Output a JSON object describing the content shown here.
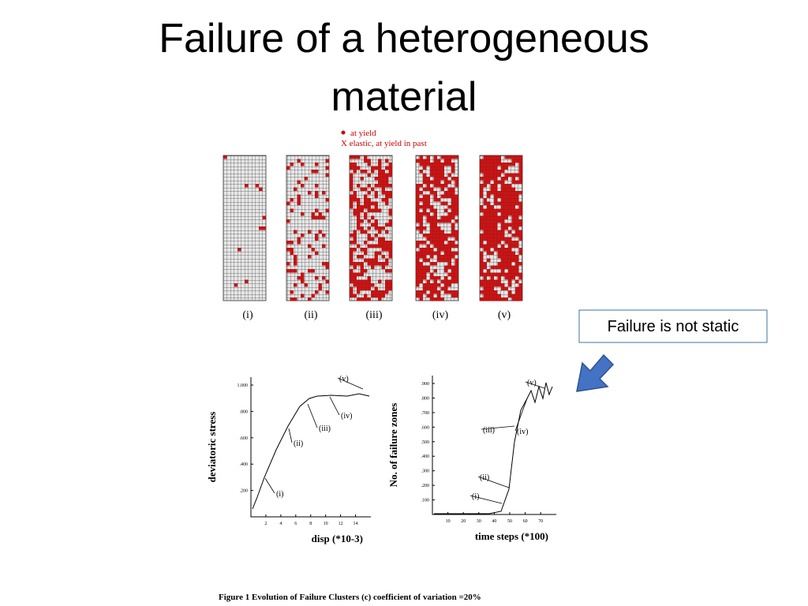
{
  "title": "Failure of a heterogeneous material",
  "legend": {
    "items": [
      "at yield",
      "X elastic, at yield in past"
    ]
  },
  "panels": {
    "labels": [
      "(i)",
      "(ii)",
      "(iii)",
      "(iv)",
      "(v)"
    ]
  },
  "stress_plot": {
    "y_label": "deviatoric stress",
    "x_label": "disp (*10-3)",
    "y_ticks": [
      ".200",
      ".400",
      ".600",
      ".800",
      "1.000"
    ],
    "x_ticks": [
      "2",
      "4",
      "6",
      "8",
      "10",
      "12",
      "14"
    ]
  },
  "zones_plot": {
    "y_label": "No. of failure zones",
    "x_label": "time steps (*100)",
    "y_ticks": [
      ".100",
      ".200",
      ".300",
      ".400",
      ".500",
      ".600",
      ".700",
      ".800",
      ".900"
    ],
    "x_ticks": [
      "10",
      "20",
      "30",
      "40",
      "50",
      "60",
      "70"
    ]
  },
  "callout": "Failure is not static",
  "caption": "Figure 1 Evolution of Failure Clusters (c) coefficient of variation =20%"
}
